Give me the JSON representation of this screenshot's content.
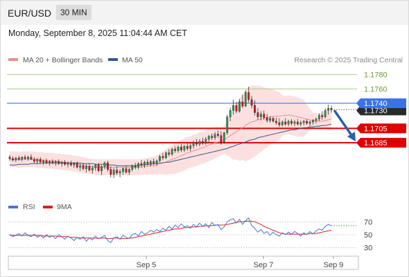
{
  "header": {
    "symbol": "EUR/USD",
    "timeframe": "30 MIN"
  },
  "timestamp": "Monday, September 8, 2025 11:04:44 AM CET",
  "legend": {
    "bollinger": {
      "label": "MA 20 + Bollinger Bands",
      "color": "#f08a8a"
    },
    "ma50": {
      "label": "MA 50",
      "color": "#35578c"
    }
  },
  "credit": "Research © 2025 Trading Central",
  "colors": {
    "up": "#27a044",
    "down": "#d01919",
    "band": "#fbd5d5",
    "key": "#e00000",
    "resistance": "#a8cc88",
    "pivot": "#3a73e8",
    "arrow": "#2f5fa0"
  },
  "chart_data": [
    {
      "type": "line",
      "title": "",
      "x_ticks": [
        "Sep 5",
        "Sep 7",
        "Sep 9"
      ],
      "ylim": [
        1.161,
        1.1795
      ],
      "levels": [
        {
          "value": 1.178,
          "label": "1.1780",
          "kind": "resistance"
        },
        {
          "value": 1.176,
          "label": "1.1760",
          "kind": "resistance"
        },
        {
          "value": 1.174,
          "label": "1.1740",
          "kind": "pivot"
        },
        {
          "value": 1.1705,
          "label": "1.1705",
          "kind": "key"
        },
        {
          "value": 1.1685,
          "label": "1.1685",
          "kind": "key"
        }
      ],
      "last_price": {
        "value": 1.173,
        "label": "1.1730"
      },
      "candles": [
        [
          1.1665,
          1.1668,
          1.166,
          1.1663
        ],
        [
          1.1663,
          1.1666,
          1.1659,
          1.1661
        ],
        [
          1.1661,
          1.1665,
          1.1658,
          1.1664
        ],
        [
          1.1664,
          1.1667,
          1.166,
          1.1662
        ],
        [
          1.1662,
          1.1666,
          1.1659,
          1.1665
        ],
        [
          1.1665,
          1.1668,
          1.1661,
          1.1663
        ],
        [
          1.1663,
          1.1667,
          1.166,
          1.1665
        ],
        [
          1.1665,
          1.1669,
          1.1661,
          1.1662
        ],
        [
          1.1662,
          1.1665,
          1.1657,
          1.1659
        ],
        [
          1.1659,
          1.1664,
          1.1656,
          1.1662
        ],
        [
          1.1662,
          1.1665,
          1.1657,
          1.1658
        ],
        [
          1.1658,
          1.1662,
          1.1654,
          1.166
        ],
        [
          1.166,
          1.1663,
          1.1655,
          1.1657
        ],
        [
          1.1657,
          1.1661,
          1.1653,
          1.1659
        ],
        [
          1.1659,
          1.1662,
          1.1655,
          1.1657
        ],
        [
          1.1657,
          1.1661,
          1.1653,
          1.1659
        ],
        [
          1.1659,
          1.1662,
          1.1654,
          1.1656
        ],
        [
          1.1656,
          1.166,
          1.1652,
          1.1658
        ],
        [
          1.1658,
          1.1661,
          1.1653,
          1.1655
        ],
        [
          1.1655,
          1.1659,
          1.1651,
          1.1657
        ],
        [
          1.1657,
          1.166,
          1.1652,
          1.1654
        ],
        [
          1.1654,
          1.1658,
          1.165,
          1.1656
        ],
        [
          1.1656,
          1.1659,
          1.1649,
          1.1651
        ],
        [
          1.1651,
          1.1656,
          1.1646,
          1.1653
        ],
        [
          1.1653,
          1.1657,
          1.1647,
          1.1649
        ],
        [
          1.1649,
          1.1655,
          1.1644,
          1.1652
        ],
        [
          1.1652,
          1.1656,
          1.1645,
          1.1647
        ],
        [
          1.1647,
          1.1653,
          1.1642,
          1.165
        ],
        [
          1.165,
          1.1656,
          1.1646,
          1.1654
        ],
        [
          1.1654,
          1.1657,
          1.1644,
          1.1646
        ],
        [
          1.1646,
          1.1654,
          1.164,
          1.1652
        ],
        [
          1.1652,
          1.1659,
          1.1648,
          1.1657
        ],
        [
          1.1657,
          1.166,
          1.1645,
          1.1648
        ],
        [
          1.1648,
          1.1652,
          1.1637,
          1.1641
        ],
        [
          1.1641,
          1.165,
          1.1636,
          1.1647
        ],
        [
          1.1647,
          1.1652,
          1.164,
          1.1643
        ],
        [
          1.1643,
          1.1648,
          1.1637,
          1.1645
        ],
        [
          1.1645,
          1.1651,
          1.164,
          1.1649
        ],
        [
          1.1649,
          1.1653,
          1.1642,
          1.1644
        ],
        [
          1.1644,
          1.165,
          1.164,
          1.1648
        ],
        [
          1.1648,
          1.1655,
          1.1645,
          1.1653
        ],
        [
          1.1653,
          1.1657,
          1.1648,
          1.1651
        ],
        [
          1.1651,
          1.1658,
          1.1648,
          1.1656
        ],
        [
          1.1656,
          1.1661,
          1.1651,
          1.1654
        ],
        [
          1.1654,
          1.166,
          1.165,
          1.1658
        ],
        [
          1.1658,
          1.1662,
          1.1653,
          1.1656
        ],
        [
          1.1656,
          1.1661,
          1.1652,
          1.1659
        ],
        [
          1.1659,
          1.1663,
          1.1654,
          1.1657
        ],
        [
          1.1657,
          1.1662,
          1.1653,
          1.166
        ],
        [
          1.166,
          1.1668,
          1.1658,
          1.1666
        ],
        [
          1.1666,
          1.1671,
          1.1661,
          1.1664
        ],
        [
          1.1664,
          1.1673,
          1.1662,
          1.1671
        ],
        [
          1.1671,
          1.1676,
          1.1666,
          1.1669
        ],
        [
          1.1669,
          1.1678,
          1.1667,
          1.1676
        ],
        [
          1.1676,
          1.168,
          1.1671,
          1.1674
        ],
        [
          1.1674,
          1.1681,
          1.1671,
          1.1679
        ],
        [
          1.1679,
          1.1683,
          1.1672,
          1.1675
        ],
        [
          1.1675,
          1.1682,
          1.1672,
          1.168
        ],
        [
          1.168,
          1.1684,
          1.1674,
          1.1677
        ],
        [
          1.1677,
          1.1684,
          1.1673,
          1.1681
        ],
        [
          1.1681,
          1.1688,
          1.1677,
          1.1685
        ],
        [
          1.1685,
          1.169,
          1.168,
          1.1683
        ],
        [
          1.1683,
          1.169,
          1.168,
          1.1687
        ],
        [
          1.1687,
          1.1692,
          1.1682,
          1.1685
        ],
        [
          1.1685,
          1.1693,
          1.1682,
          1.169
        ],
        [
          1.169,
          1.1696,
          1.1686,
          1.1694
        ],
        [
          1.1694,
          1.1698,
          1.1689,
          1.1692
        ],
        [
          1.1692,
          1.17,
          1.1689,
          1.1697
        ],
        [
          1.1697,
          1.1702,
          1.1692,
          1.1695
        ],
        [
          1.1695,
          1.1701,
          1.1682,
          1.1686
        ],
        [
          1.1686,
          1.17,
          1.1684,
          1.1699
        ],
        [
          1.1699,
          1.1724,
          1.1696,
          1.1721
        ],
        [
          1.1721,
          1.1734,
          1.1715,
          1.173
        ],
        [
          1.173,
          1.1745,
          1.1724,
          1.1737
        ],
        [
          1.1737,
          1.1742,
          1.1726,
          1.1729
        ],
        [
          1.1729,
          1.1746,
          1.1727,
          1.1742
        ],
        [
          1.1742,
          1.1752,
          1.1733,
          1.1736
        ],
        [
          1.1736,
          1.1758,
          1.1735,
          1.1755
        ],
        [
          1.1755,
          1.1763,
          1.1741,
          1.1745
        ],
        [
          1.1745,
          1.175,
          1.1733,
          1.1737
        ],
        [
          1.1737,
          1.1744,
          1.1723,
          1.1727
        ],
        [
          1.1727,
          1.1733,
          1.1717,
          1.1721
        ],
        [
          1.1721,
          1.1729,
          1.1716,
          1.1725
        ],
        [
          1.1725,
          1.173,
          1.1717,
          1.172
        ],
        [
          1.172,
          1.1725,
          1.1713,
          1.1716
        ],
        [
          1.1716,
          1.1722,
          1.1713,
          1.1719
        ],
        [
          1.1719,
          1.1721,
          1.1713,
          1.1715
        ],
        [
          1.1715,
          1.172,
          1.171,
          1.1713
        ],
        [
          1.1713,
          1.1719,
          1.1707,
          1.171
        ],
        [
          1.171,
          1.1716,
          1.1708,
          1.1714
        ],
        [
          1.1714,
          1.1719,
          1.1709,
          1.1711
        ],
        [
          1.1711,
          1.1717,
          1.1708,
          1.1715
        ],
        [
          1.1715,
          1.1718,
          1.1709,
          1.1712
        ],
        [
          1.1712,
          1.1717,
          1.1708,
          1.1714
        ],
        [
          1.1714,
          1.1718,
          1.1709,
          1.1711
        ],
        [
          1.1711,
          1.1716,
          1.1708,
          1.1713
        ],
        [
          1.1713,
          1.1717,
          1.1709,
          1.1715
        ],
        [
          1.1715,
          1.1718,
          1.171,
          1.1712
        ],
        [
          1.1712,
          1.1716,
          1.1708,
          1.1714
        ],
        [
          1.1714,
          1.1718,
          1.171,
          1.1716
        ],
        [
          1.1716,
          1.172,
          1.1712,
          1.1718
        ],
        [
          1.1718,
          1.1726,
          1.1715,
          1.1723
        ],
        [
          1.1723,
          1.1729,
          1.1717,
          1.1721
        ],
        [
          1.1721,
          1.1733,
          1.1719,
          1.173
        ],
        [
          1.173,
          1.1738,
          1.1724,
          1.1733
        ],
        [
          1.1733,
          1.1737,
          1.1727,
          1.1731
        ]
      ],
      "series": [
        {
          "name": "MA 20",
          "values": [
            1.1662,
            1.1662,
            1.1662,
            1.1661,
            1.1662,
            1.1662,
            1.1662,
            1.1662,
            1.1662,
            1.1661,
            1.1661,
            1.1661,
            1.166,
            1.166,
            1.166,
            1.1659,
            1.1659,
            1.1658,
            1.1658,
            1.1657,
            1.1657,
            1.1656,
            1.1656,
            1.1655,
            1.1654,
            1.1653,
            1.1652,
            1.1652,
            1.1651,
            1.1651,
            1.1651,
            1.1651,
            1.1651,
            1.1651,
            1.1651,
            1.1651,
            1.1651,
            1.1651,
            1.1651,
            1.1651,
            1.1651,
            1.1651,
            1.1651,
            1.1651,
            1.1652,
            1.1652,
            1.1653,
            1.1653,
            1.1654,
            1.1656,
            1.1657,
            1.1658,
            1.166,
            1.1662,
            1.1663,
            1.1665,
            1.1667,
            1.1669,
            1.1671,
            1.1672,
            1.1674,
            1.1675,
            1.1677,
            1.1678,
            1.168,
            1.1682,
            1.1683,
            1.1685,
            1.1686,
            1.1687,
            1.1689,
            1.1692,
            1.1695,
            1.1698,
            1.17,
            1.1703,
            1.1706,
            1.1709,
            1.1712,
            1.1714,
            1.1715,
            1.1717,
            1.1718,
            1.1719,
            1.172,
            1.1721,
            1.1722,
            1.1722,
            1.1722,
            1.1723,
            1.1723,
            1.1724,
            1.1723,
            1.1722,
            1.1721,
            1.172,
            1.1719,
            1.1718,
            1.1717,
            1.1716,
            1.1715,
            1.1715,
            1.1715,
            1.1716,
            1.1717,
            1.1718
          ]
        },
        {
          "name": "MA 50",
          "values": [
            1.1654,
            1.1654,
            1.1654,
            1.1655,
            1.1655,
            1.1655,
            1.1655,
            1.1656,
            1.1656,
            1.1656,
            1.1656,
            1.1657,
            1.1657,
            1.1657,
            1.1657,
            1.1657,
            1.1657,
            1.1657,
            1.1657,
            1.1657,
            1.1657,
            1.1657,
            1.1657,
            1.1657,
            1.1656,
            1.1656,
            1.1656,
            1.1656,
            1.1655,
            1.1655,
            1.1655,
            1.1655,
            1.1654,
            1.1654,
            1.1654,
            1.1653,
            1.1653,
            1.1653,
            1.1653,
            1.1653,
            1.1653,
            1.1653,
            1.1654,
            1.1654,
            1.1654,
            1.1655,
            1.1655,
            1.1656,
            1.1656,
            1.1657,
            1.1657,
            1.1658,
            1.1658,
            1.1659,
            1.166,
            1.1661,
            1.1662,
            1.1663,
            1.1664,
            1.1665,
            1.1666,
            1.1667,
            1.1668,
            1.1669,
            1.167,
            1.1671,
            1.1672,
            1.1673,
            1.1674,
            1.1675,
            1.1676,
            1.1677,
            1.1679,
            1.168,
            1.1682,
            1.1683,
            1.1685,
            1.1686,
            1.1688,
            1.1689,
            1.169,
            1.1692,
            1.1693,
            1.1694,
            1.1695,
            1.1696,
            1.1697,
            1.1698,
            1.1699,
            1.17,
            1.1701,
            1.1702,
            1.1703,
            1.1703,
            1.1704,
            1.1705,
            1.1706,
            1.1706,
            1.1707,
            1.1707,
            1.1708,
            1.1708,
            1.1709,
            1.1709,
            1.171,
            1.1711
          ]
        }
      ]
    },
    {
      "type": "line",
      "title": "",
      "legend": [
        {
          "name": "RSI",
          "color": "#4a74d0"
        },
        {
          "name": "9MA",
          "color": "#e01b1b"
        }
      ],
      "ylim": [
        20,
        80
      ],
      "y_ticks": [
        30,
        50,
        70
      ],
      "series": [
        {
          "name": "RSI",
          "values": [
            51,
            47,
            49,
            52,
            48,
            53,
            49,
            47,
            51,
            46,
            49,
            45,
            50,
            46,
            48,
            44,
            50,
            47,
            43,
            48,
            45,
            41,
            46,
            43,
            47,
            40,
            45,
            42,
            48,
            44,
            46,
            49,
            41,
            38,
            45,
            47,
            43,
            49,
            46,
            44,
            50,
            52,
            48,
            55,
            51,
            53,
            57,
            54,
            58,
            55,
            60,
            57,
            63,
            59,
            65,
            61,
            67,
            62,
            64,
            60,
            66,
            62,
            68,
            63,
            67,
            61,
            69,
            64,
            66,
            58,
            62,
            70,
            73,
            75,
            68,
            74,
            66,
            72,
            76,
            64,
            60,
            54,
            58,
            52,
            55,
            49,
            54,
            50,
            48,
            53,
            50,
            54,
            51,
            55,
            52,
            48,
            53,
            50,
            55,
            51,
            56,
            59,
            57,
            63,
            66,
            64
          ]
        },
        {
          "name": "9MA",
          "values": [
            49,
            49,
            49,
            49,
            49,
            49,
            49,
            49,
            49,
            49,
            49,
            48,
            48,
            48,
            48,
            48,
            47,
            47,
            47,
            47,
            46,
            46,
            46,
            45,
            45,
            45,
            45,
            45,
            45,
            44,
            45,
            45,
            44,
            44,
            45,
            45,
            44,
            44,
            44,
            45,
            45,
            46,
            47,
            48,
            49,
            50,
            51,
            52,
            53,
            54,
            55,
            56,
            57,
            58,
            59,
            59,
            60,
            61,
            61,
            62,
            62,
            62,
            63,
            63,
            64,
            64,
            64,
            65,
            65,
            65,
            65,
            66,
            67,
            68,
            69,
            70,
            70,
            71,
            71,
            71,
            70,
            68,
            66,
            63,
            61,
            59,
            57,
            55,
            53,
            52,
            51,
            51,
            51,
            51,
            51,
            51,
            51,
            51,
            52,
            52,
            52,
            53,
            54,
            55,
            56,
            57
          ]
        }
      ]
    }
  ]
}
